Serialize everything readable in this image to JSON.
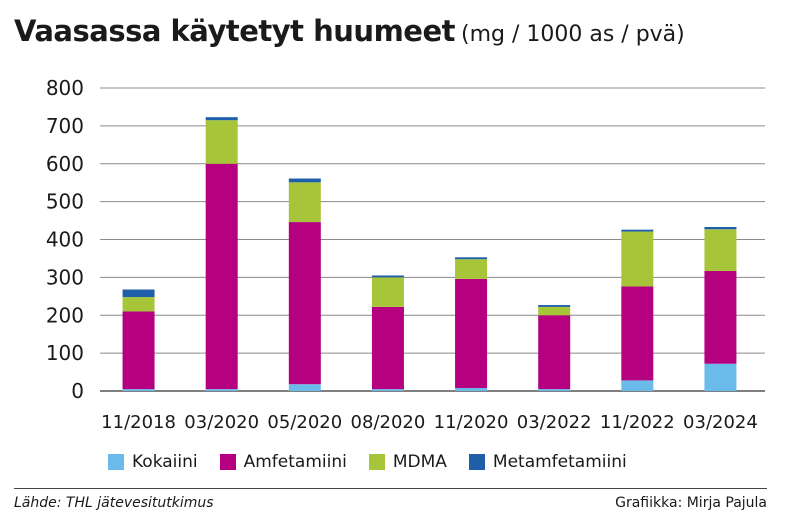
{
  "header": {
    "title": "Vaasassa käytetyt huumeet",
    "unit": "(mg / 1000 as / pvä)"
  },
  "footer": {
    "source": "Lähde: THL jätevesitutkimus",
    "credit": "Grafiikka: Mirja Pajula"
  },
  "chart_data": {
    "type": "bar",
    "stacked": true,
    "title": "Vaasassa käytetyt huumeet",
    "ylabel": "",
    "xlabel": "",
    "ylim": [
      0,
      800
    ],
    "yticks": [
      0,
      100,
      200,
      300,
      400,
      500,
      600,
      700,
      800
    ],
    "grid": true,
    "legend_position": "bottom",
    "categories": [
      "11/2018",
      "03/2020",
      "05/2020",
      "08/2020",
      "11/2020",
      "03/2022",
      "11/2022",
      "03/2024"
    ],
    "series": [
      {
        "name": "Kokaiini",
        "color": "#6bbbea",
        "values": [
          5,
          5,
          18,
          5,
          8,
          5,
          28,
          72
        ]
      },
      {
        "name": "Amfetamiini",
        "color": "#b5007f",
        "values": [
          205,
          595,
          428,
          217,
          288,
          195,
          248,
          245
        ]
      },
      {
        "name": "MDMA",
        "color": "#a7c539",
        "values": [
          38,
          115,
          105,
          78,
          52,
          22,
          145,
          110
        ]
      },
      {
        "name": "Metamfetamiini",
        "color": "#1f5fa9",
        "values": [
          20,
          8,
          10,
          5,
          5,
          5,
          5,
          6
        ]
      }
    ]
  }
}
